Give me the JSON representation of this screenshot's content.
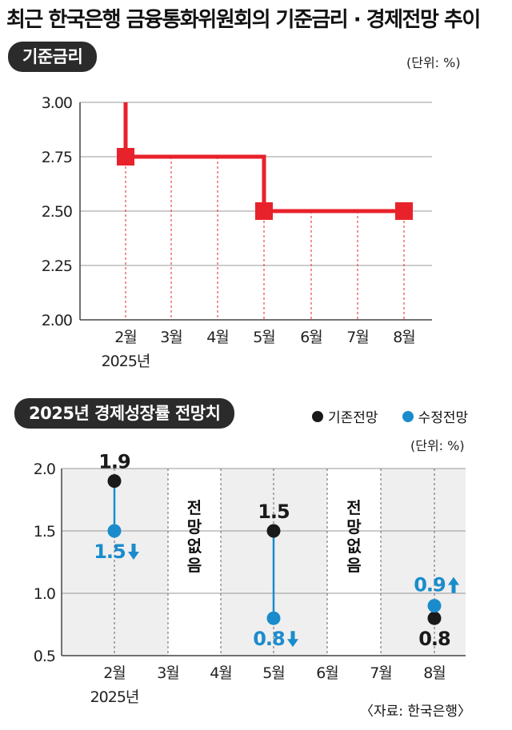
{
  "title": "최근 한국은행 금융통화위원회의 기준금리 · 경제전망 추이",
  "source": "〈자료: 한국은행〉",
  "colors": {
    "rate_line": "#e8222b",
    "existing": "#1a1a1a",
    "revised": "#1a8ccc",
    "shade": "#efefef",
    "pill": "#2b2b2b"
  },
  "legend": {
    "existing": "기존전망",
    "revised": "수정전망"
  },
  "icons": {
    "legend_existing": "black-dot-icon",
    "legend_revised": "blue-dot-icon",
    "up": "up-arrow-icon",
    "down": "down-arrow-icon"
  },
  "rate_panel": {
    "label": "기준금리",
    "unit": "(단위: %)"
  },
  "growth_panel": {
    "label": "2025년 경제성장률 전망치",
    "unit": "(단위: %)",
    "no_forecast": "전망없음"
  },
  "chart_data": [
    {
      "type": "line",
      "step": true,
      "categories": [
        "2월",
        "3월",
        "4월",
        "5월",
        "6월",
        "7월",
        "8월"
      ],
      "year_label": "2025년",
      "ylim": [
        2.0,
        3.0
      ],
      "yticks": [
        "3.00",
        "2.75",
        "2.50",
        "2.25",
        "2.00"
      ],
      "ytick_values": [
        3.0,
        2.75,
        2.5,
        2.25,
        2.0
      ],
      "prior_value": 3.0,
      "series": [
        {
          "values": [
            2.75,
            2.75,
            2.75,
            2.5,
            2.5,
            2.5,
            2.5
          ],
          "markers": [
            "2월",
            "5월",
            "8월"
          ]
        }
      ],
      "grid": "horizontal",
      "ylabel": "",
      "xlabel": ""
    },
    {
      "type": "scatter",
      "categories": [
        "2월",
        "3월",
        "4월",
        "5월",
        "6월",
        "7월",
        "8월"
      ],
      "year_label": "2025년",
      "ylim": [
        0.5,
        2.0
      ],
      "yticks": [
        "2.0",
        "1.5",
        "1.0",
        "0.5"
      ],
      "ytick_values": [
        2.0,
        1.5,
        1.0,
        0.5
      ],
      "series": [
        {
          "name": "기존전망",
          "points": [
            {
              "x": "2월",
              "y": 1.9
            },
            {
              "x": "5월",
              "y": 1.5
            },
            {
              "x": "8월",
              "y": 0.8
            }
          ]
        },
        {
          "name": "수정전망",
          "points": [
            {
              "x": "2월",
              "y": 1.5
            },
            {
              "x": "5월",
              "y": 0.8
            },
            {
              "x": "8월",
              "y": 0.9
            }
          ]
        }
      ],
      "data_labels": {
        "existing": [
          "1.9",
          "1.5",
          "0.8"
        ],
        "revised": [
          "1.5",
          "0.8",
          "0.9"
        ],
        "direction": [
          "down",
          "down",
          "up"
        ]
      },
      "annotations": [
        {
          "between": [
            "3월",
            "4월"
          ],
          "text": "전망없음"
        },
        {
          "between": [
            "6월",
            "7월"
          ],
          "text": "전망없음"
        }
      ],
      "grid": "horizontal",
      "ylabel": "",
      "xlabel": ""
    }
  ]
}
